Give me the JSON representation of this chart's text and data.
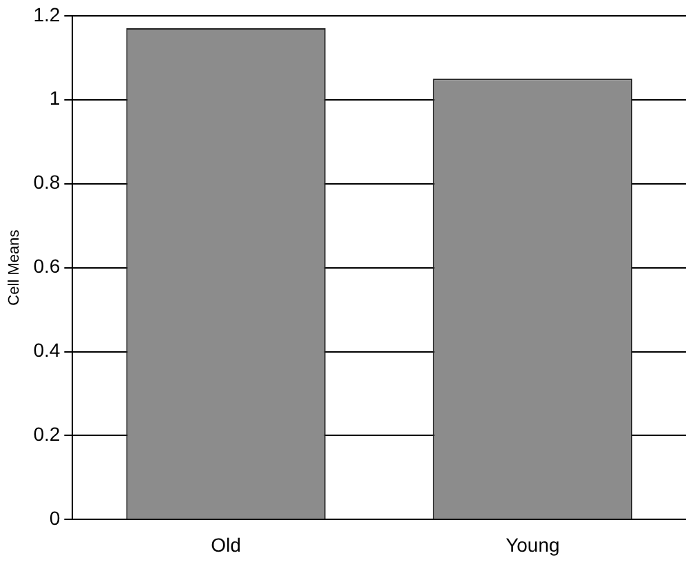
{
  "chart_data": {
    "type": "bar",
    "ylabel": "Cell Means",
    "categories": [
      "Old",
      "Young"
    ],
    "values": [
      1.17,
      1.05
    ],
    "color": "#8c8c8c",
    "ylim": [
      0,
      1.2
    ],
    "yticks": [
      0,
      0.2,
      0.4,
      0.6,
      0.8,
      1,
      1.2
    ],
    "grid": "y",
    "legend": false
  }
}
